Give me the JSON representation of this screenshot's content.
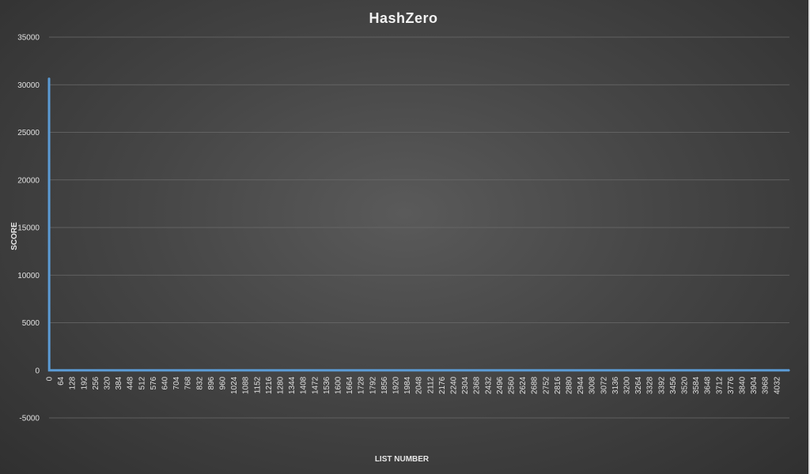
{
  "chart_data": {
    "type": "line",
    "title": "HashZero",
    "xlabel": "LIST NUMBER",
    "ylabel": "SCORE",
    "ylim": [
      -5000,
      35000
    ],
    "yticks": [
      35000,
      30000,
      25000,
      20000,
      15000,
      10000,
      5000,
      0,
      -5000
    ],
    "xlim": [
      0,
      4095
    ],
    "xtick_step": 64,
    "xtick_labels": [
      "0",
      "64",
      "128",
      "192",
      "256",
      "320",
      "384",
      "448",
      "512",
      "576",
      "640",
      "704",
      "768",
      "832",
      "896",
      "960",
      "1024",
      "1088",
      "1152",
      "1216",
      "1280",
      "1344",
      "1408",
      "1472",
      "1536",
      "1600",
      "1664",
      "1728",
      "1792",
      "1856",
      "1920",
      "1984",
      "2048",
      "2112",
      "2176",
      "2240",
      "2304",
      "2368",
      "2432",
      "2496",
      "2560",
      "2624",
      "2688",
      "2752",
      "2816",
      "2880",
      "2944",
      "3008",
      "3072",
      "3136",
      "3200",
      "3264",
      "3328",
      "3392",
      "3456",
      "3520",
      "3584",
      "3648",
      "3712",
      "3776",
      "3840",
      "3904",
      "3968",
      "4032"
    ],
    "grid": true,
    "legend": "none",
    "series": [
      {
        "points": [
          [
            0,
            30700
          ],
          [
            1,
            0
          ],
          [
            4095,
            0
          ]
        ]
      }
    ],
    "colors": {
      "series": "#5b9bd5",
      "gridline": "#6b6b6b",
      "text": "#e0e0e0",
      "background": "#474747"
    }
  }
}
